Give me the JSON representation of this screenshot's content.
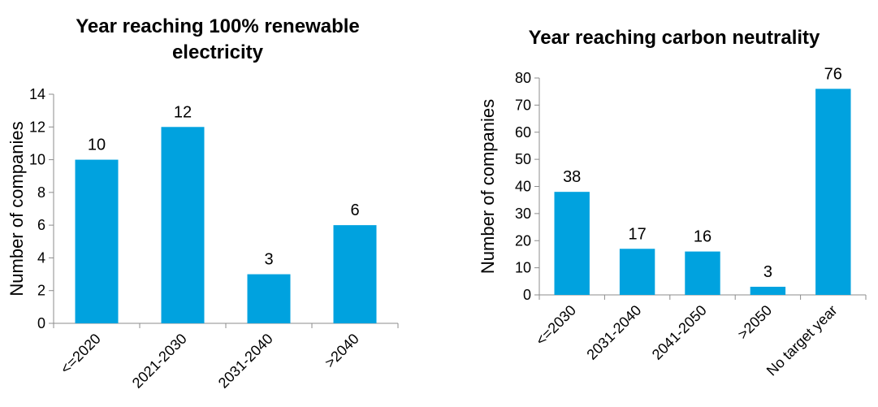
{
  "colors": {
    "bar": "#00A2DF",
    "axis": "#8C8C8C",
    "text": "#000000"
  },
  "chart_data": [
    {
      "type": "bar",
      "title_lines": [
        "Year reaching 100% renewable",
        "electricity"
      ],
      "xlabel": "",
      "ylabel": "Number of companies",
      "ylim": [
        0,
        14
      ],
      "yticks": [
        0,
        2,
        4,
        6,
        8,
        10,
        12,
        14
      ],
      "categories": [
        "<=2020",
        "2021-2030",
        "2031-2040",
        ">2040"
      ],
      "values": [
        10,
        12,
        3,
        6
      ],
      "grid": false,
      "legend": "none"
    },
    {
      "type": "bar",
      "title_lines": [
        "Year reaching carbon neutrality"
      ],
      "xlabel": "",
      "ylabel": "Number of companies",
      "ylim": [
        0,
        80
      ],
      "yticks": [
        0,
        10,
        20,
        30,
        40,
        50,
        60,
        70,
        80
      ],
      "categories": [
        "<=2030",
        "2031-2040",
        "2041-2050",
        ">2050",
        "No target year"
      ],
      "values": [
        38,
        17,
        16,
        3,
        76
      ],
      "grid": false,
      "legend": "none"
    }
  ]
}
